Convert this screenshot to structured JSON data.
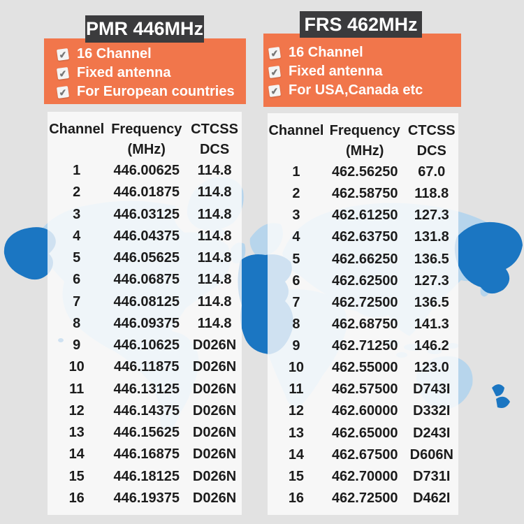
{
  "colors": {
    "background": "#e2e2e2",
    "orange": "#f1764b",
    "title_bg": "#3b3b3d",
    "title_text": "#ffffff",
    "feature_text": "#ffffff",
    "table_text": "#1c1c1c",
    "panel_bg": "rgba(252,252,252,0.8)",
    "map_light": "#b7d5ec",
    "map_dark": "#1b76c2",
    "check_color": "#777777",
    "check_box_bg": "#f4f4f4"
  },
  "left": {
    "title": "PMR 446MHz",
    "features": [
      "16 Channel",
      "Fixed antenna",
      "For European countries"
    ],
    "table": {
      "header_row1": [
        "Channel",
        "Frequency",
        "CTCSS"
      ],
      "header_row2": [
        "",
        "(MHz)",
        "DCS"
      ],
      "rows": [
        [
          "1",
          "446.00625",
          "114.8"
        ],
        [
          "2",
          "446.01875",
          "114.8"
        ],
        [
          "3",
          "446.03125",
          "114.8"
        ],
        [
          "4",
          "446.04375",
          "114.8"
        ],
        [
          "5",
          "446.05625",
          "114.8"
        ],
        [
          "6",
          "446.06875",
          "114.8"
        ],
        [
          "7",
          "446.08125",
          "114.8"
        ],
        [
          "8",
          "446.09375",
          "114.8"
        ],
        [
          "9",
          "446.10625",
          "D026N"
        ],
        [
          "10",
          "446.11875",
          "D026N"
        ],
        [
          "11",
          "446.13125",
          "D026N"
        ],
        [
          "12",
          "446.14375",
          "D026N"
        ],
        [
          "13",
          "446.15625",
          "D026N"
        ],
        [
          "14",
          "446.16875",
          "D026N"
        ],
        [
          "15",
          "446.18125",
          "D026N"
        ],
        [
          "16",
          "446.19375",
          "D026N"
        ]
      ]
    }
  },
  "right": {
    "title": "FRS 462MHz",
    "features": [
      "16 Channel",
      "Fixed antenna",
      "For USA,Canada etc"
    ],
    "table": {
      "header_row1": [
        "Channel",
        "Frequency",
        "CTCSS"
      ],
      "header_row2": [
        "",
        "(MHz)",
        "DCS"
      ],
      "rows": [
        [
          "1",
          "462.56250",
          "67.0"
        ],
        [
          "2",
          "462.58750",
          "118.8"
        ],
        [
          "3",
          "462.61250",
          "127.3"
        ],
        [
          "4",
          "462.63750",
          "131.8"
        ],
        [
          "5",
          "462.66250",
          "136.5"
        ],
        [
          "6",
          "462.62500",
          "127.3"
        ],
        [
          "7",
          "462.72500",
          "136.5"
        ],
        [
          "8",
          "462.68750",
          "141.3"
        ],
        [
          "9",
          "462.71250",
          "146.2"
        ],
        [
          "10",
          "462.55000",
          "123.0"
        ],
        [
          "11",
          "462.57500",
          "D743I"
        ],
        [
          "12",
          "462.60000",
          "D332I"
        ],
        [
          "13",
          "462.65000",
          "D243I"
        ],
        [
          "14",
          "462.67500",
          "D606N"
        ],
        [
          "15",
          "462.70000",
          "D731I"
        ],
        [
          "16",
          "462.72500",
          "D462I"
        ]
      ]
    }
  }
}
